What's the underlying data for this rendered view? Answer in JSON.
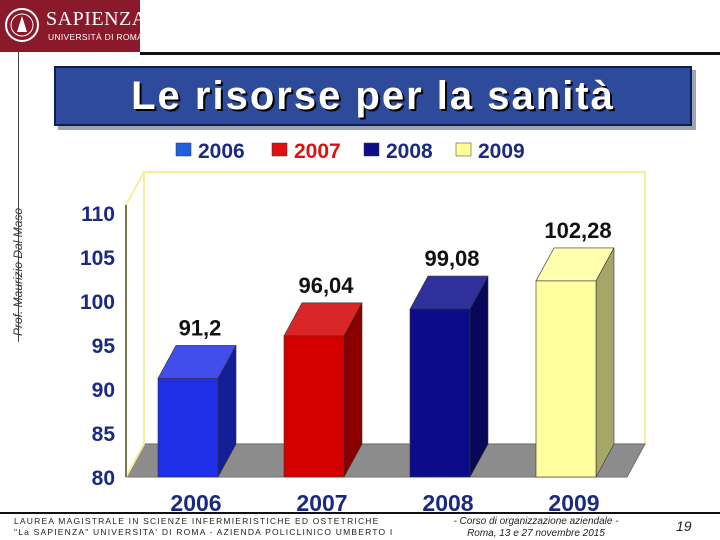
{
  "header": {
    "logo_name": "SAPIENZA",
    "logo_sub": "UNIVERSITÀ DI ROMA",
    "author": "Prof. Maurizio Dal Maso",
    "title": "Le risorse per la sanità"
  },
  "chart_data": {
    "type": "bar",
    "categories": [
      "2006",
      "2007",
      "2008",
      "2009"
    ],
    "values": [
      91.2,
      96.04,
      99.08,
      102.28
    ],
    "data_labels": [
      "91,2",
      "96,04",
      "99,08",
      "102,28"
    ],
    "colors": [
      "#1f2fe8",
      "#d40000",
      "#0c0c8a",
      "#ffffa0"
    ],
    "legend": [
      "2006",
      "2007",
      "2008",
      "2009"
    ],
    "legend_colors": [
      "#1f5fe0",
      "#e01010",
      "#0c0c8a",
      "#ffff99"
    ],
    "legend_placement": "top",
    "yticks": [
      "80",
      "85",
      "90",
      "95",
      "100",
      "105",
      "110"
    ],
    "ylim": [
      80,
      110
    ],
    "style": "3d",
    "grid": false
  },
  "footer": {
    "left_line1": "LAUREA MAGISTRALE IN SCIENZE INFERMIERISTICHE ED OSTETRICHE",
    "left_line2": "\"La SAPIENZA\" UNIVERSITA' DI ROMA - AZIENDA POLICLINICO UMBERTO I",
    "mid_line1": "- Corso di organizzazione aziendale -",
    "mid_line2": "Roma, 13 e 27 novembre 2015",
    "page": "19"
  }
}
